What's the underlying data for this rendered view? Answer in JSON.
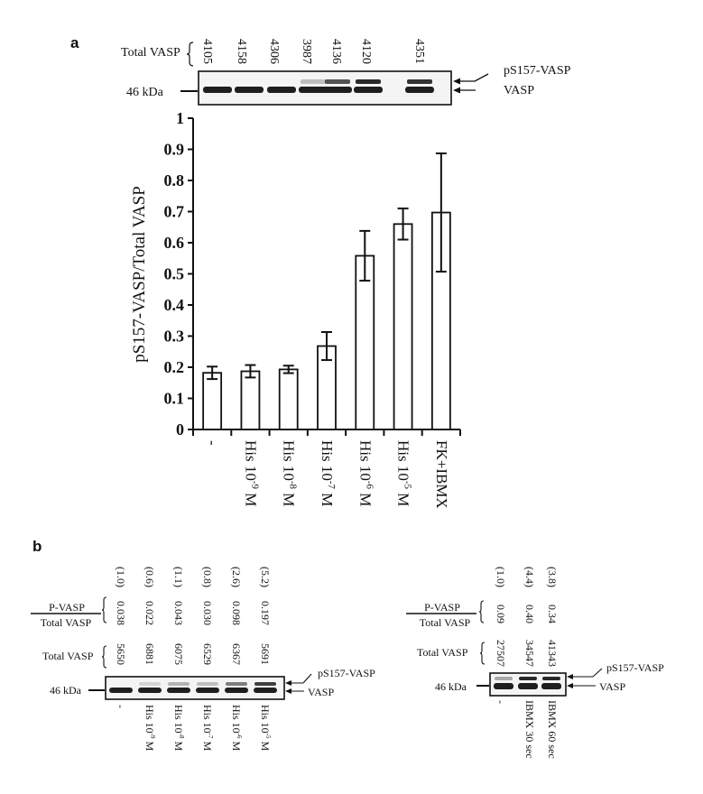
{
  "panel_a": {
    "label": "a",
    "total_vasp_label": "Total VASP",
    "total_vasp_values": [
      "4105",
      "4158",
      "4306",
      "3987",
      "4136",
      "4120",
      "4351"
    ],
    "mw_marker": "46 kDa",
    "band_upper_label": "pS157-VASP",
    "band_lower_label": "VASP"
  },
  "chart_data": {
    "type": "bar",
    "title": "",
    "xlabel": "",
    "ylabel": "pS157-VASP/Total VASP",
    "ylim": [
      0,
      1
    ],
    "yticks": [
      "0",
      "0.1",
      "0.2",
      "0.3",
      "0.4",
      "0.5",
      "0.6",
      "0.7",
      "0.8",
      "0.9",
      "1"
    ],
    "categories": [
      {
        "base": "-",
        "sup": "",
        "unit": ""
      },
      {
        "base": "His 10",
        "sup": "-9",
        "unit": " M"
      },
      {
        "base": "His 10",
        "sup": "-8",
        "unit": " M"
      },
      {
        "base": "His 10",
        "sup": "-7",
        "unit": " M"
      },
      {
        "base": "His 10",
        "sup": "-6",
        "unit": " M"
      },
      {
        "base": "His 10",
        "sup": "-5",
        "unit": " M"
      },
      {
        "base": "FK+IBMX",
        "sup": "",
        "unit": ""
      }
    ],
    "values": [
      0.182,
      0.187,
      0.193,
      0.268,
      0.558,
      0.66,
      0.697
    ],
    "errors": [
      0.02,
      0.02,
      0.012,
      0.045,
      0.08,
      0.05,
      0.19
    ]
  },
  "panel_b": {
    "label": "b",
    "left": {
      "ratio_numerator": "P-VASP",
      "ratio_denominator": "Total VASP",
      "relative_values": [
        "(1.0)",
        "(0.6)",
        "(1.1)",
        "(0.8)",
        "(2.6)",
        "(5.2)"
      ],
      "ratio_values": [
        "0.038",
        "0.022",
        "0.043",
        "0.030",
        "0.098",
        "0.197"
      ],
      "total_vasp_label": "Total VASP",
      "total_vasp_values": [
        "5650",
        "6881",
        "6075",
        "6529",
        "6367",
        "5691"
      ],
      "mw_marker": "46 kDa",
      "band_upper_label": "pS157-VASP",
      "band_lower_label": "VASP",
      "lanes": [
        {
          "base": "-",
          "sup": "",
          "unit": ""
        },
        {
          "base": "His 10",
          "sup": "-9",
          "unit": " M"
        },
        {
          "base": "His 10",
          "sup": "-8",
          "unit": " M"
        },
        {
          "base": "His 10",
          "sup": "-7",
          "unit": " M"
        },
        {
          "base": "His 10",
          "sup": "-6",
          "unit": " M"
        },
        {
          "base": "His 10",
          "sup": "-5",
          "unit": " M"
        }
      ]
    },
    "right": {
      "ratio_numerator": "P-VASP",
      "ratio_denominator": "Total VASP",
      "relative_values": [
        "(1.0)",
        "(4.4)",
        "(3.8)"
      ],
      "ratio_values": [
        "0.09",
        "0.40",
        "0.34"
      ],
      "total_vasp_label": "Total VASP",
      "total_vasp_values": [
        "27507",
        "34547",
        "41343"
      ],
      "mw_marker": "46 kDa",
      "band_upper_label": "pS157-VASP",
      "band_lower_label": "VASP",
      "lanes": [
        "-",
        "IBMX 30 sec",
        "IBMX 60 sec"
      ]
    }
  }
}
